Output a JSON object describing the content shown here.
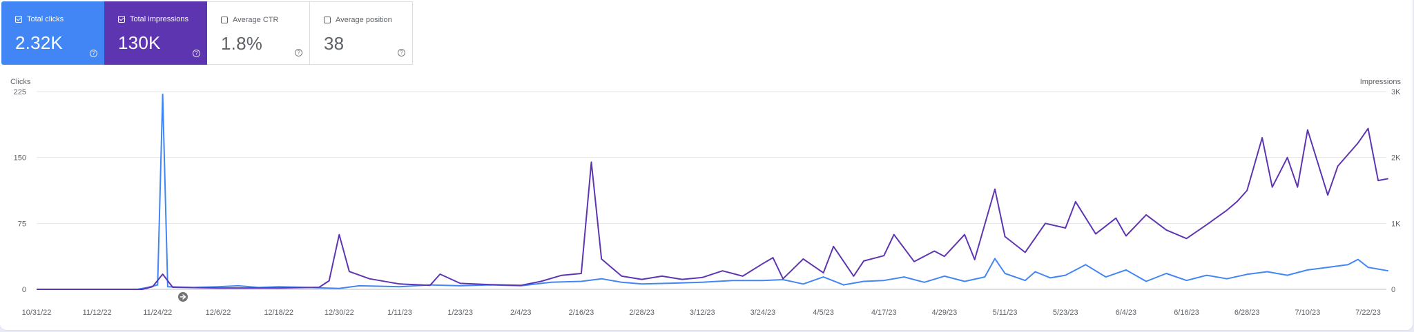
{
  "metrics": {
    "clicks": {
      "label": "Total clicks",
      "value": "2.32K",
      "checked": true,
      "color": "#4285f4"
    },
    "impressions": {
      "label": "Total impressions",
      "value": "130K",
      "checked": true,
      "color": "#5e35b1"
    },
    "ctr": {
      "label": "Average CTR",
      "value": "1.8%",
      "checked": false
    },
    "position": {
      "label": "Average position",
      "value": "38",
      "checked": false
    }
  },
  "help_glyph": "?",
  "chart_data": {
    "type": "line",
    "x_start": "10/31/22",
    "x_end": "7/27/23",
    "x_tick_labels": [
      "10/31/22",
      "11/12/22",
      "11/24/22",
      "12/6/22",
      "12/18/22",
      "12/30/22",
      "1/11/23",
      "1/23/23",
      "2/4/23",
      "2/16/23",
      "2/28/23",
      "3/12/23",
      "3/24/23",
      "4/5/23",
      "4/17/23",
      "4/29/23",
      "5/11/23",
      "5/23/23",
      "6/4/23",
      "6/16/23",
      "6/28/23",
      "7/10/23",
      "7/22/23"
    ],
    "y_left": {
      "label": "Clicks",
      "ticks": [
        "0",
        "75",
        "150",
        "225"
      ],
      "ylim": [
        0,
        225
      ]
    },
    "y_right": {
      "label": "Impressions",
      "ticks": [
        "0",
        "1K",
        "2K",
        "3K"
      ],
      "ylim": [
        0,
        3000
      ]
    },
    "grid": "horizontal",
    "series": [
      {
        "name": "Total clicks",
        "axis": "left",
        "color": "#4285f4",
        "points": [
          [
            "10/31/22",
            0
          ],
          [
            "11/20/22",
            0
          ],
          [
            "11/22/22",
            2
          ],
          [
            "11/24/22",
            5
          ],
          [
            "11/25/22",
            222
          ],
          [
            "11/26/22",
            3
          ],
          [
            "12/1/22",
            2
          ],
          [
            "12/6/22",
            3
          ],
          [
            "12/10/22",
            4
          ],
          [
            "12/14/22",
            2
          ],
          [
            "12/18/22",
            3
          ],
          [
            "12/24/22",
            2
          ],
          [
            "12/30/22",
            1
          ],
          [
            "1/3/23",
            4
          ],
          [
            "1/11/23",
            3
          ],
          [
            "1/17/23",
            5
          ],
          [
            "1/23/23",
            4
          ],
          [
            "1/29/23",
            5
          ],
          [
            "2/4/23",
            4
          ],
          [
            "2/10/23",
            8
          ],
          [
            "2/16/23",
            9
          ],
          [
            "2/20/23",
            12
          ],
          [
            "2/24/23",
            8
          ],
          [
            "2/28/23",
            6
          ],
          [
            "3/6/23",
            7
          ],
          [
            "3/12/23",
            8
          ],
          [
            "3/18/23",
            10
          ],
          [
            "3/24/23",
            10
          ],
          [
            "3/28/23",
            11
          ],
          [
            "4/1/23",
            6
          ],
          [
            "4/5/23",
            14
          ],
          [
            "4/9/23",
            5
          ],
          [
            "4/13/23",
            9
          ],
          [
            "4/17/23",
            10
          ],
          [
            "4/21/23",
            14
          ],
          [
            "4/25/23",
            8
          ],
          [
            "4/29/23",
            15
          ],
          [
            "5/3/23",
            9
          ],
          [
            "5/7/23",
            14
          ],
          [
            "5/9/23",
            35
          ],
          [
            "5/11/23",
            18
          ],
          [
            "5/15/23",
            10
          ],
          [
            "5/17/23",
            20
          ],
          [
            "5/20/23",
            13
          ],
          [
            "5/23/23",
            16
          ],
          [
            "5/27/23",
            28
          ],
          [
            "5/31/23",
            14
          ],
          [
            "6/4/23",
            22
          ],
          [
            "6/8/23",
            9
          ],
          [
            "6/12/23",
            18
          ],
          [
            "6/16/23",
            10
          ],
          [
            "6/20/23",
            16
          ],
          [
            "6/24/23",
            12
          ],
          [
            "6/28/23",
            17
          ],
          [
            "7/2/23",
            20
          ],
          [
            "7/6/23",
            16
          ],
          [
            "7/10/23",
            22
          ],
          [
            "7/14/23",
            25
          ],
          [
            "7/18/23",
            28
          ],
          [
            "7/20/23",
            34
          ],
          [
            "7/22/23",
            25
          ],
          [
            "7/26/23",
            21
          ]
        ]
      },
      {
        "name": "Total impressions",
        "axis": "right",
        "color": "#5e35b1",
        "points": [
          [
            "10/31/22",
            0
          ],
          [
            "11/21/22",
            0
          ],
          [
            "11/23/22",
            40
          ],
          [
            "11/25/22",
            230
          ],
          [
            "11/27/22",
            30
          ],
          [
            "12/6/22",
            20
          ],
          [
            "12/18/22",
            20
          ],
          [
            "12/26/22",
            30
          ],
          [
            "12/28/22",
            130
          ],
          [
            "12/30/22",
            830
          ],
          [
            "1/1/23",
            270
          ],
          [
            "1/5/23",
            160
          ],
          [
            "1/11/23",
            80
          ],
          [
            "1/17/23",
            60
          ],
          [
            "1/19/23",
            230
          ],
          [
            "1/23/23",
            90
          ],
          [
            "1/29/23",
            70
          ],
          [
            "2/4/23",
            60
          ],
          [
            "2/8/23",
            120
          ],
          [
            "2/12/23",
            210
          ],
          [
            "2/16/23",
            240
          ],
          [
            "2/18/23",
            1930
          ],
          [
            "2/20/23",
            460
          ],
          [
            "2/24/23",
            200
          ],
          [
            "2/28/23",
            150
          ],
          [
            "3/4/23",
            200
          ],
          [
            "3/8/23",
            150
          ],
          [
            "3/12/23",
            180
          ],
          [
            "3/16/23",
            280
          ],
          [
            "3/20/23",
            200
          ],
          [
            "3/24/23",
            390
          ],
          [
            "3/26/23",
            480
          ],
          [
            "3/28/23",
            160
          ],
          [
            "4/1/23",
            460
          ],
          [
            "4/5/23",
            250
          ],
          [
            "4/7/23",
            650
          ],
          [
            "4/11/23",
            200
          ],
          [
            "4/13/23",
            430
          ],
          [
            "4/17/23",
            510
          ],
          [
            "4/19/23",
            830
          ],
          [
            "4/23/23",
            420
          ],
          [
            "4/27/23",
            580
          ],
          [
            "4/29/23",
            500
          ],
          [
            "5/3/23",
            830
          ],
          [
            "5/5/23",
            450
          ],
          [
            "5/9/23",
            1520
          ],
          [
            "5/11/23",
            800
          ],
          [
            "5/15/23",
            560
          ],
          [
            "5/19/23",
            1000
          ],
          [
            "5/23/23",
            930
          ],
          [
            "5/25/23",
            1330
          ],
          [
            "5/29/23",
            840
          ],
          [
            "6/2/23",
            1080
          ],
          [
            "6/4/23",
            810
          ],
          [
            "6/8/23",
            1130
          ],
          [
            "6/12/23",
            900
          ],
          [
            "6/16/23",
            770
          ],
          [
            "6/20/23",
            980
          ],
          [
            "6/24/23",
            1200
          ],
          [
            "6/26/23",
            1330
          ],
          [
            "6/28/23",
            1500
          ],
          [
            "7/1/23",
            2300
          ],
          [
            "7/3/23",
            1550
          ],
          [
            "7/6/23",
            2000
          ],
          [
            "7/8/23",
            1550
          ],
          [
            "7/10/23",
            2420
          ],
          [
            "7/14/23",
            1430
          ],
          [
            "7/16/23",
            1870
          ],
          [
            "7/20/23",
            2220
          ],
          [
            "7/22/23",
            2440
          ],
          [
            "7/24/23",
            1650
          ],
          [
            "7/26/23",
            1680
          ]
        ]
      }
    ]
  }
}
